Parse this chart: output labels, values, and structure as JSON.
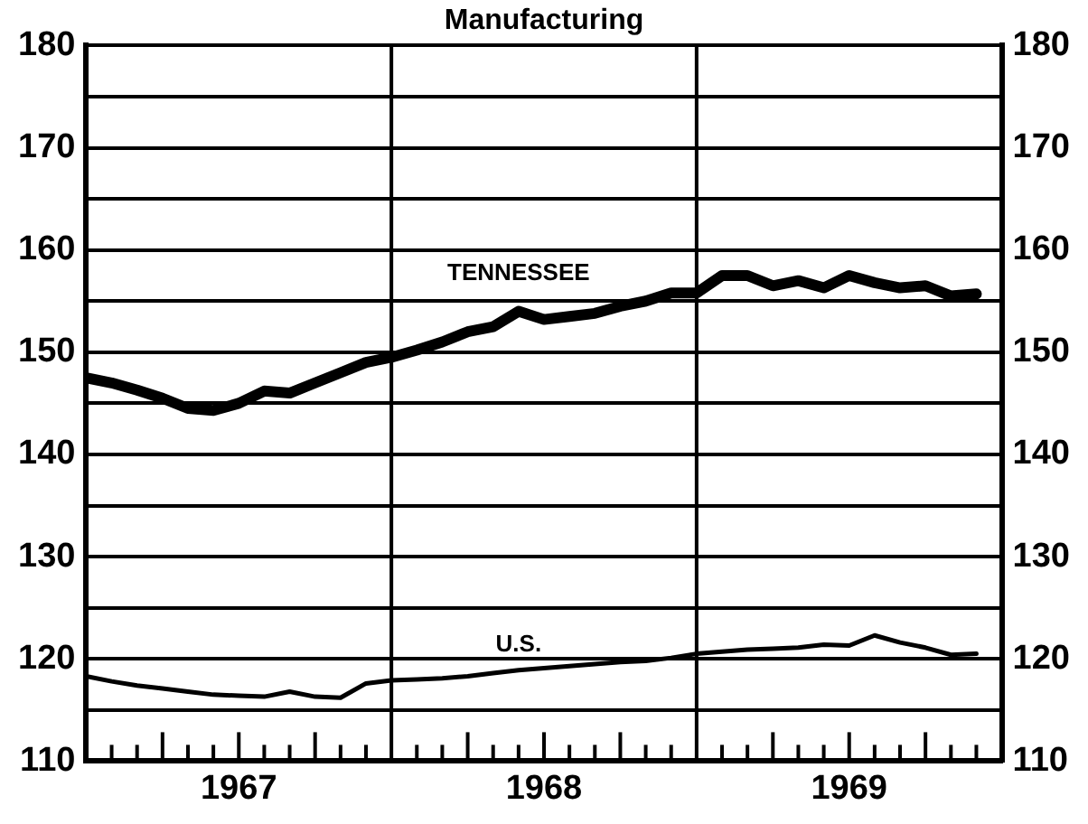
{
  "chart_data": {
    "type": "line",
    "title": "Manufacturing",
    "x": [
      "1967-01",
      "1967-02",
      "1967-03",
      "1967-04",
      "1967-05",
      "1967-06",
      "1967-07",
      "1967-08",
      "1967-09",
      "1967-10",
      "1967-11",
      "1967-12",
      "1968-01",
      "1968-02",
      "1968-03",
      "1968-04",
      "1968-05",
      "1968-06",
      "1968-07",
      "1968-08",
      "1968-09",
      "1968-10",
      "1968-11",
      "1968-12",
      "1969-01",
      "1969-02",
      "1969-03",
      "1969-04",
      "1969-05",
      "1969-06",
      "1969-07",
      "1969-08",
      "1969-09",
      "1969-10",
      "1969-11",
      "1969-12"
    ],
    "series": [
      {
        "name": "TENNESSEE",
        "color": "#000000",
        "values": [
          147.5,
          147,
          146.3,
          145.5,
          144.5,
          144.3,
          145,
          146.2,
          146,
          147,
          148,
          149,
          149.5,
          150.2,
          151,
          152,
          152.5,
          154,
          153.2,
          153.5,
          153.8,
          154.5,
          155,
          155.8,
          155.8,
          157.5,
          157.5,
          156.5,
          157,
          156.3,
          157.5,
          156.8,
          156.3,
          156.5,
          155.5,
          155.7
        ]
      },
      {
        "name": "U.S.",
        "color": "#000000",
        "values": [
          118.3,
          117.8,
          117.4,
          117.1,
          116.8,
          116.5,
          116.4,
          116.3,
          116.8,
          116.3,
          116.2,
          117.6,
          117.9,
          118,
          118.1,
          118.3,
          118.6,
          118.9,
          119.1,
          119.3,
          119.5,
          119.7,
          119.8,
          120.1,
          120.5,
          120.7,
          120.9,
          121,
          121.1,
          121.4,
          121.3,
          122.3,
          121.6,
          121.1,
          120.4,
          120.5
        ]
      }
    ],
    "xlim": [
      "1967-01",
      "1970-01"
    ],
    "xticks": [
      {
        "value": "1967-07",
        "label": "1967"
      },
      {
        "value": "1968-07",
        "label": "1968"
      },
      {
        "value": "1969-07",
        "label": "1969"
      }
    ],
    "ylim": [
      110,
      180
    ],
    "yticks": [
      110,
      {
        "value": 115,
        "label": null
      },
      120,
      {
        "value": 125,
        "label": null
      },
      130,
      {
        "value": 135,
        "label": null
      },
      140,
      {
        "value": 145,
        "label": null
      },
      150,
      {
        "value": 155,
        "label": null
      },
      160,
      {
        "value": 165,
        "label": null
      },
      170,
      {
        "value": 175,
        "label": null
      },
      180
    ],
    "y2lim": [
      110,
      180
    ],
    "y2ticks": [
      110,
      120,
      130,
      140,
      150,
      160,
      170,
      180
    ],
    "ref_lines": [
      {
        "axis": "x",
        "value": "1968-01"
      },
      {
        "axis": "x",
        "value": "1969-01"
      }
    ],
    "grid": "y",
    "legend": false,
    "marker": "none",
    "line_style": "solid"
  }
}
